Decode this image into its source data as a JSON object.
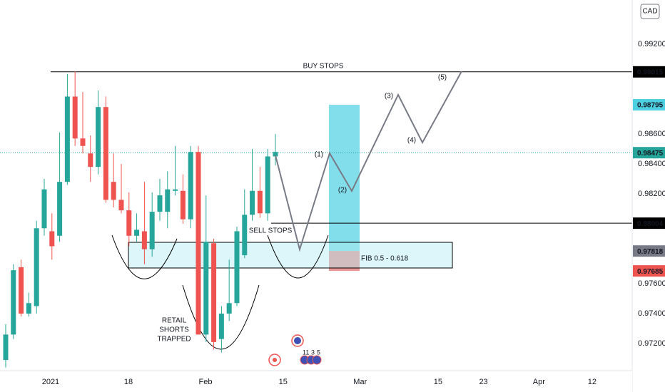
{
  "chart_data": {
    "type": "candlestick",
    "currency": "CAD",
    "up_color": "#26a69a",
    "down_color": "#ef5350",
    "grid": false,
    "xlim": [
      -0.74,
      81.3
    ],
    "ylim": [
      0.97019,
      0.99495
    ],
    "xticks": [
      {
        "value": 5.83,
        "label": "2021"
      },
      {
        "value": 15.93,
        "label": "18"
      },
      {
        "value": 25.93,
        "label": "Feb"
      },
      {
        "value": 36.0,
        "label": "15"
      },
      {
        "value": 46.0,
        "label": "Mar"
      },
      {
        "value": 56.1,
        "label": "15"
      },
      {
        "value": 62.0,
        "label": "23"
      },
      {
        "value": 69.2,
        "label": "Apr"
      },
      {
        "value": 76.1,
        "label": "12"
      }
    ],
    "yticks": [
      {
        "value": 0.992,
        "label": "0.99200"
      },
      {
        "value": 0.986,
        "label": "0.98600"
      },
      {
        "value": 0.984,
        "label": "0.98400"
      },
      {
        "value": 0.982,
        "label": "0.98200"
      },
      {
        "value": 0.976,
        "label": "0.97600"
      },
      {
        "value": 0.974,
        "label": "0.97400"
      },
      {
        "value": 0.972,
        "label": "0.97200"
      }
    ],
    "price_markers": [
      {
        "value": 0.99015,
        "color": "#000000"
      },
      {
        "value": 0.98795,
        "color": "#4dd0e1"
      },
      {
        "value": 0.98475,
        "color": "#26a69a"
      },
      {
        "value": 0.98004,
        "color": "#000000"
      },
      {
        "value": 0.97818,
        "color": "#787b86"
      },
      {
        "value": 0.97685,
        "color": "#ef5350"
      }
    ],
    "candles": {
      "open": [
        0.9709,
        0.9726,
        0.9771,
        0.974,
        0.9745,
        0.9797,
        0.9795,
        0.9792,
        0.9828,
        0.9885,
        0.9857,
        0.9847,
        0.9838,
        0.9878,
        0.9828,
        0.9816,
        0.9809,
        0.9792,
        0.9795,
        0.9783,
        0.9808,
        0.9808,
        0.9822,
        0.9822,
        0.9803,
        0.9848,
        0.9726,
        0.9787,
        0.9723,
        0.974,
        0.9747,
        0.9779,
        0.9806,
        0.9822,
        0.9807,
        0.9845
      ],
      "high": [
        0.9733,
        0.9773,
        0.9776,
        0.9754,
        0.9802,
        0.983,
        0.9807,
        0.9861,
        0.99,
        0.9902,
        0.9888,
        0.9859,
        0.9889,
        0.9885,
        0.9847,
        0.984,
        0.9821,
        0.9807,
        0.9828,
        0.9821,
        0.983,
        0.9835,
        0.9852,
        0.9833,
        0.9852,
        0.9852,
        0.9819,
        0.979,
        0.9745,
        0.9776,
        0.9798,
        0.9823,
        0.985,
        0.9838,
        0.985,
        0.986
      ],
      "low": [
        0.9704,
        0.9723,
        0.9738,
        0.9738,
        0.974,
        0.9792,
        0.9776,
        0.9788,
        0.9826,
        0.9852,
        0.9847,
        0.9828,
        0.9833,
        0.9814,
        0.9811,
        0.9807,
        0.9785,
        0.9788,
        0.9773,
        0.9778,
        0.9802,
        0.9797,
        0.9819,
        0.98,
        0.9797,
        0.9726,
        0.9721,
        0.9716,
        0.9714,
        0.9735,
        0.9745,
        0.9777,
        0.9802,
        0.9804,
        0.9802,
        0.9839
      ],
      "close": [
        0.9726,
        0.9769,
        0.974,
        0.9747,
        0.9797,
        0.9823,
        0.9785,
        0.9828,
        0.9885,
        0.9857,
        0.9852,
        0.9838,
        0.9878,
        0.9816,
        0.9816,
        0.9809,
        0.9792,
        0.9796,
        0.9783,
        0.9808,
        0.9819,
        0.9823,
        0.9823,
        0.9803,
        0.9848,
        0.9726,
        0.9788,
        0.9721,
        0.974,
        0.9747,
        0.9795,
        0.9806,
        0.9822,
        0.9807,
        0.9845,
        0.9848
      ]
    },
    "annotations": {
      "buy_stops": "BUY STOPS",
      "sell_stops": "SELL STOPS",
      "retail": [
        "RETAIL",
        "SHORTS",
        "TRAPPED"
      ],
      "fib": "FIB 0.5 - 0.618",
      "waves": [
        "(1)",
        "(2)",
        "(3)",
        "(4)",
        "(5)"
      ],
      "events": [
        "11",
        "3",
        "5"
      ]
    }
  }
}
